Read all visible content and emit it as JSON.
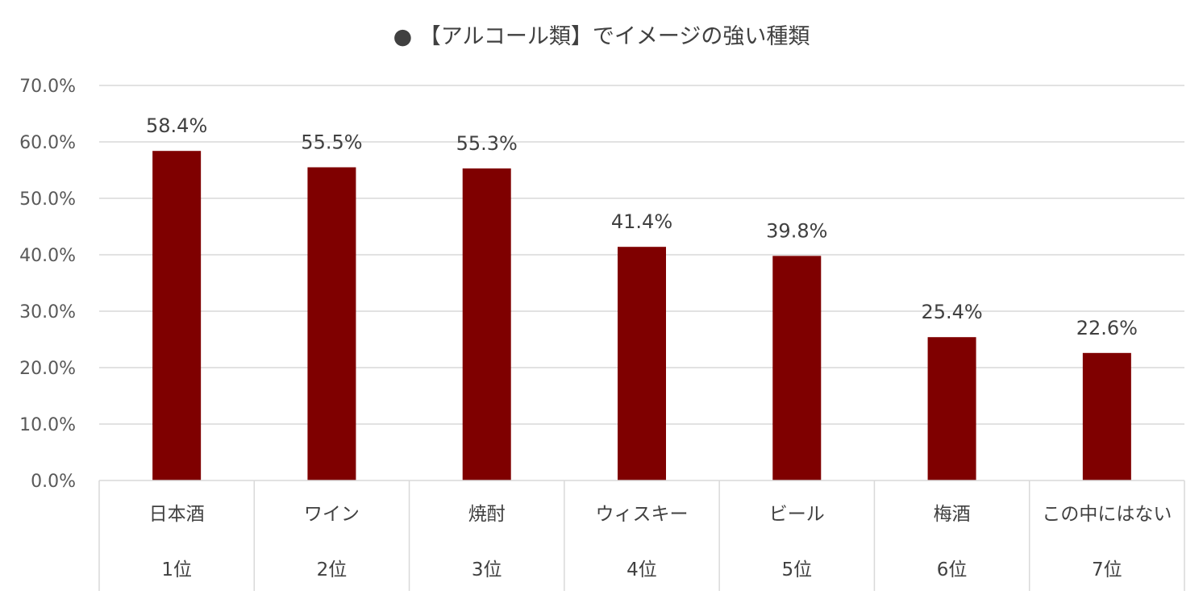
{
  "chart_data": {
    "type": "bar",
    "title": "● 【アルコール類】でイメージの強い種類",
    "categories": [
      "日本酒",
      "ワイン",
      "焼酎",
      "ウィスキー",
      "ビール",
      "梅酒",
      "この中にはない"
    ],
    "ranks": [
      "1位",
      "2位",
      "3位",
      "4位",
      "5位",
      "6位",
      "7位"
    ],
    "values": [
      58.4,
      55.5,
      55.3,
      41.4,
      39.8,
      25.4,
      22.6
    ],
    "data_labels": [
      "58.4%",
      "55.5%",
      "55.3%",
      "41.4%",
      "39.8%",
      "25.4%",
      "22.6%"
    ],
    "ylim": [
      0,
      70
    ],
    "ytick_labels": [
      "0.0%",
      "10.0%",
      "20.0%",
      "30.0%",
      "40.0%",
      "50.0%",
      "60.0%",
      "70.0%"
    ],
    "xlabel": "",
    "ylabel": "",
    "grid": true,
    "bar_color": "#7f0000",
    "grid_color": "#d9d9d9"
  }
}
